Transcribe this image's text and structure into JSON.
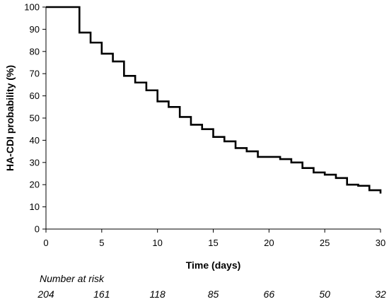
{
  "chart_data": {
    "type": "line",
    "step": true,
    "xlabel": "Time (days)",
    "ylabel": "HA-CDI probability (%)",
    "xlim": [
      0,
      30
    ],
    "ylim": [
      0,
      100
    ],
    "x_ticks": [
      0,
      5,
      10,
      15,
      20,
      25,
      30
    ],
    "y_ticks": [
      0,
      10,
      20,
      30,
      40,
      50,
      60,
      70,
      80,
      90,
      100
    ],
    "grid": false,
    "line_color": "#000000",
    "series": [
      {
        "points": [
          [
            0,
            100
          ],
          [
            3,
            88.5
          ],
          [
            4,
            84
          ],
          [
            5,
            79
          ],
          [
            6,
            75.5
          ],
          [
            7,
            69
          ],
          [
            8,
            66
          ],
          [
            9,
            62.5
          ],
          [
            10,
            57.5
          ],
          [
            11,
            55
          ],
          [
            12,
            50.5
          ],
          [
            13,
            47
          ],
          [
            14,
            45
          ],
          [
            15,
            41.5
          ],
          [
            16,
            39.5
          ],
          [
            17,
            36.5
          ],
          [
            18,
            35
          ],
          [
            19,
            32.5
          ],
          [
            21,
            31.5
          ],
          [
            22,
            30
          ],
          [
            23,
            27.5
          ],
          [
            24,
            25.5
          ],
          [
            25,
            24.5
          ],
          [
            26,
            23
          ],
          [
            27,
            20
          ],
          [
            28,
            19.5
          ],
          [
            29,
            17.5
          ],
          [
            30,
            16
          ]
        ]
      }
    ]
  },
  "risk_table": {
    "title": "Number at risk",
    "times": [
      0,
      5,
      10,
      15,
      20,
      25,
      30
    ],
    "values": [
      "204",
      "161",
      "118",
      "85",
      "66",
      "50",
      "32"
    ]
  }
}
